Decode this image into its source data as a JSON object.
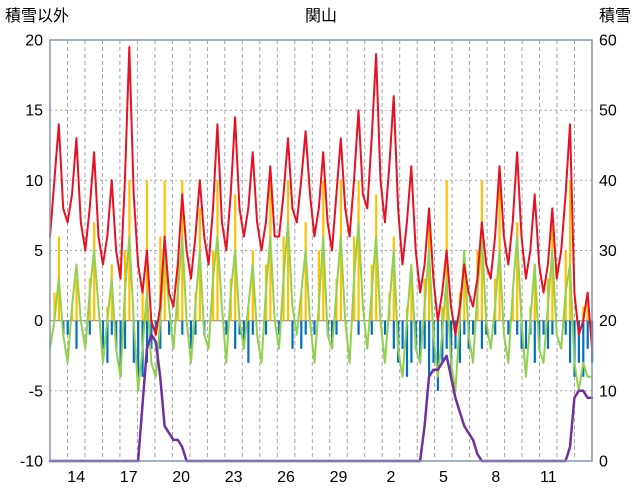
{
  "header": {
    "left_label": "積雪以外",
    "title": "関山",
    "right_label": "積雪"
  },
  "chart_data": {
    "type": "line",
    "title": "関山",
    "left_axis": {
      "label": "積雪以外",
      "min": -10,
      "max": 20,
      "ticks": [
        20,
        15,
        10,
        5,
        0,
        -5,
        -10
      ]
    },
    "right_axis": {
      "label": "積雪",
      "min": 0,
      "max": 60,
      "ticks": [
        60,
        50,
        40,
        30,
        20,
        10,
        0
      ]
    },
    "x_axis": {
      "days_total": 31,
      "ticks": [
        {
          "label": "14",
          "offset": 1.5
        },
        {
          "label": "17",
          "offset": 4.5
        },
        {
          "label": "20",
          "offset": 7.5
        },
        {
          "label": "23",
          "offset": 10.5
        },
        {
          "label": "26",
          "offset": 13.5
        },
        {
          "label": "29",
          "offset": 16.5
        },
        {
          "label": "2",
          "offset": 19.5
        },
        {
          "label": "5",
          "offset": 22.5
        },
        {
          "label": "8",
          "offset": 25.5
        },
        {
          "label": "11",
          "offset": 28.5
        }
      ]
    },
    "colors": {
      "frame": "#8496b0",
      "grid": "#a6a6a6",
      "zero_line": "#808080",
      "red": "#e81123",
      "green": "#92d050",
      "orange": "#ffc000",
      "blue": "#0070c0",
      "purple": "#7030a0"
    },
    "series": [
      {
        "id": "orange-bars",
        "kind": "bar-up",
        "axis": "left",
        "color_key": "orange",
        "values": [
          0,
          2,
          6,
          0,
          0,
          1,
          3,
          0,
          0,
          3,
          7,
          0,
          0,
          1,
          4,
          0,
          0,
          5,
          10,
          0,
          0,
          2,
          10,
          0,
          0,
          6,
          10,
          0,
          0,
          4,
          10,
          0,
          0,
          2,
          8,
          0,
          0,
          5,
          10,
          0,
          0,
          3,
          9,
          0,
          0,
          1,
          5,
          0,
          0,
          4,
          10,
          0,
          0,
          6,
          10,
          0,
          0,
          2,
          7,
          0,
          0,
          5,
          10,
          0,
          0,
          3,
          10,
          0,
          0,
          6,
          10,
          0,
          0,
          4,
          9,
          0,
          0,
          2,
          6,
          0,
          0,
          1,
          3,
          0,
          0,
          3,
          8,
          0,
          0,
          1,
          10,
          0,
          0,
          2,
          5,
          0,
          0,
          5,
          10,
          0,
          0,
          3,
          10,
          0,
          0,
          2,
          7,
          0,
          0,
          1,
          4,
          0,
          0,
          3,
          8,
          0,
          0,
          5,
          10,
          0,
          0,
          1,
          2,
          0
        ]
      },
      {
        "id": "blue-bars",
        "kind": "bar-down",
        "axis": "left",
        "color_key": "blue",
        "values": [
          0,
          0,
          0,
          1,
          1,
          0,
          2,
          0,
          0,
          1,
          0,
          0,
          2,
          3,
          1,
          2,
          4,
          2,
          0,
          3,
          5,
          4,
          3,
          2,
          1,
          2,
          0,
          1,
          0,
          0,
          1,
          0,
          2,
          1,
          0,
          1,
          0,
          0,
          0,
          0,
          1,
          0,
          2,
          1,
          2,
          3,
          1,
          0,
          0,
          1,
          0,
          0,
          1,
          0,
          0,
          2,
          0,
          2,
          1,
          0,
          1,
          0,
          0,
          1,
          2,
          1,
          0,
          0,
          0,
          0,
          1,
          0,
          0,
          1,
          0,
          0,
          1,
          0,
          2,
          3,
          2,
          4,
          3,
          2,
          3,
          2,
          4,
          3,
          5,
          3,
          2,
          4,
          2,
          3,
          1,
          2,
          1,
          0,
          2,
          1,
          0,
          1,
          0,
          0,
          1,
          0,
          1,
          2,
          2,
          1,
          3,
          2,
          1,
          2,
          1,
          0,
          0,
          1,
          3,
          4,
          3,
          4,
          2,
          3
        ]
      },
      {
        "id": "green-line",
        "kind": "line",
        "axis": "left",
        "color_key": "green",
        "width": 2,
        "values": [
          -2,
          0,
          3,
          -1,
          -3,
          1,
          4,
          0,
          -2,
          2,
          5,
          1,
          -3,
          0,
          3,
          -2,
          -4,
          2,
          6,
          0,
          -5,
          -2,
          2,
          -3,
          -4,
          0,
          5,
          1,
          -2,
          2,
          6,
          0,
          -3,
          1,
          5,
          -1,
          -2,
          3,
          6,
          1,
          -3,
          2,
          5,
          0,
          -2,
          1,
          4,
          -1,
          -3,
          2,
          6,
          0,
          -2,
          3,
          7,
          1,
          -1,
          2,
          5,
          0,
          -3,
          1,
          6,
          -1,
          -2,
          2,
          6,
          0,
          -3,
          3,
          7,
          1,
          -2,
          2,
          6,
          0,
          -3,
          1,
          5,
          -2,
          -4,
          0,
          4,
          -2,
          -3,
          1,
          5,
          -1,
          -4,
          -1,
          3,
          -3,
          -5,
          0,
          5,
          -1,
          -3,
          2,
          6,
          0,
          -2,
          1,
          5,
          -1,
          -3,
          2,
          6,
          0,
          -4,
          0,
          4,
          -2,
          -3,
          1,
          5,
          -1,
          -2,
          2,
          4,
          -3,
          -5,
          -3,
          -4,
          -4
        ]
      },
      {
        "id": "purple-line",
        "kind": "line",
        "axis": "right",
        "color_key": "purple",
        "width": 2.5,
        "values": [
          0,
          0,
          0,
          0,
          0,
          0,
          0,
          0,
          0,
          0,
          0,
          0,
          0,
          0,
          0,
          0,
          0,
          0,
          0,
          0,
          0,
          8,
          16,
          18,
          17,
          12,
          5,
          4,
          3,
          3,
          2,
          0,
          0,
          0,
          0,
          0,
          0,
          0,
          0,
          0,
          0,
          0,
          0,
          0,
          0,
          0,
          0,
          0,
          0,
          0,
          0,
          0,
          0,
          0,
          0,
          0,
          0,
          0,
          0,
          0,
          0,
          0,
          0,
          0,
          0,
          0,
          0,
          0,
          0,
          0,
          0,
          0,
          0,
          0,
          0,
          0,
          0,
          0,
          0,
          0,
          0,
          0,
          0,
          0,
          0,
          5,
          12,
          13,
          13,
          14,
          15,
          12,
          9,
          7,
          5,
          4,
          3,
          1,
          0,
          0,
          0,
          0,
          0,
          0,
          0,
          0,
          0,
          0,
          0,
          0,
          0,
          0,
          0,
          0,
          0,
          0,
          0,
          0,
          2,
          9,
          10,
          10,
          9,
          9
        ]
      },
      {
        "id": "red-line",
        "kind": "line",
        "axis": "left",
        "color_key": "red",
        "width": 2,
        "values": [
          6,
          10,
          14,
          8,
          7,
          9,
          13,
          7,
          5,
          8,
          12,
          6,
          4,
          6,
          10,
          5,
          3,
          10,
          19.5,
          9,
          4,
          2,
          5,
          0,
          -1,
          1,
          6,
          2,
          1,
          4,
          9,
          5,
          3,
          6,
          10,
          6,
          4,
          8,
          14,
          7,
          5,
          9,
          14.5,
          8,
          6,
          8,
          12,
          7,
          5,
          7,
          11,
          6,
          6,
          9,
          13,
          8,
          7,
          10,
          13.5,
          9,
          6,
          8,
          12,
          7,
          5,
          9,
          13,
          8,
          6,
          10,
          15,
          9,
          8,
          13,
          19,
          10,
          7,
          11,
          16,
          8,
          4,
          7,
          11,
          5,
          2,
          4,
          8,
          3,
          0,
          2,
          5,
          1,
          -1,
          1,
          4,
          2,
          1,
          3,
          7,
          4,
          3,
          6,
          11,
          6,
          4,
          7,
          12,
          6,
          3,
          5,
          9,
          4,
          2,
          4,
          8,
          3,
          5,
          9,
          14,
          2,
          -1,
          0,
          2,
          -2
        ]
      }
    ]
  }
}
